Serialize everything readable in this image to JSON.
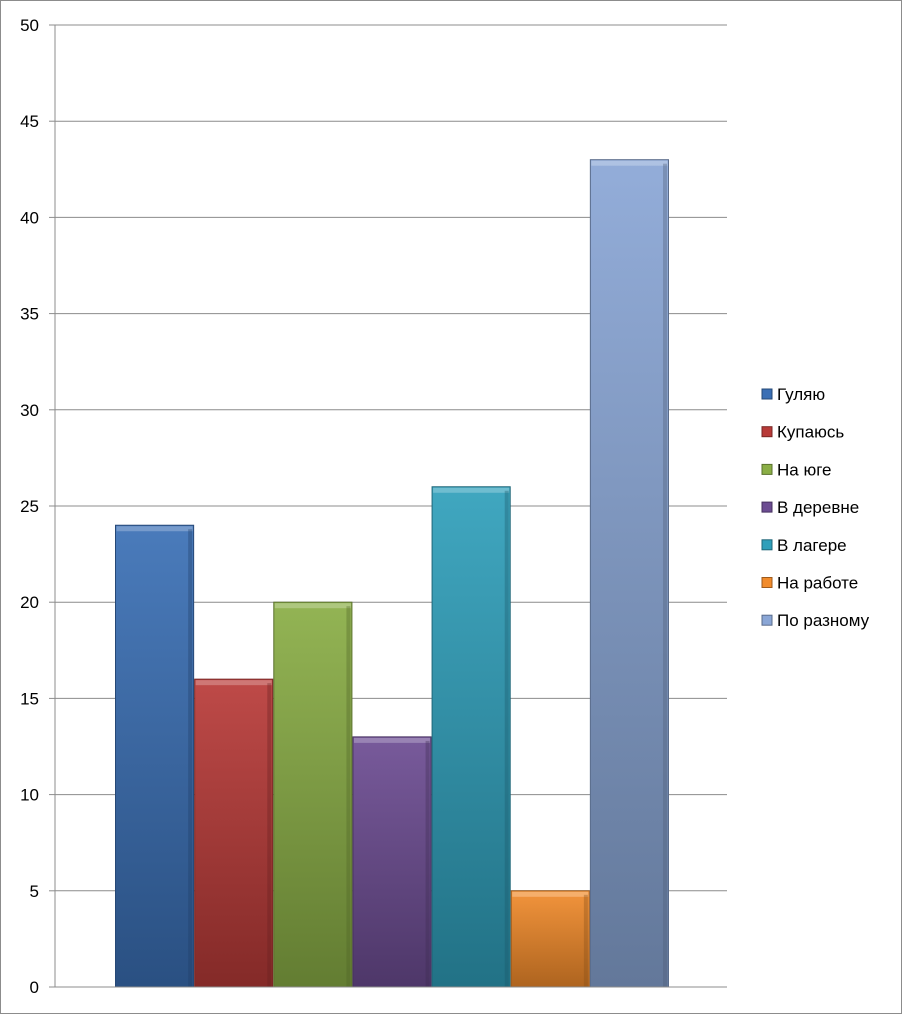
{
  "chart_data": {
    "type": "bar",
    "title": "",
    "xlabel": "",
    "ylabel": "",
    "ylim": [
      0,
      50
    ],
    "y_ticks": [
      "0",
      "5",
      "10",
      "15",
      "20",
      "25",
      "30",
      "35",
      "40",
      "45",
      "50"
    ],
    "grid": true,
    "legend_position": "right",
    "series": [
      {
        "name": "Гуляю",
        "value": 24,
        "color": "#3a6fb5"
      },
      {
        "name": "Купаюсь",
        "value": 16,
        "color": "#b83a38"
      },
      {
        "name": "На юге",
        "value": 20,
        "color": "#8aae45"
      },
      {
        "name": "В деревне",
        "value": 13,
        "color": "#6c4c92"
      },
      {
        "name": "В лагере",
        "value": 26,
        "color": "#2f9fba"
      },
      {
        "name": "На работе",
        "value": 5,
        "color": "#f18b2b"
      },
      {
        "name": "По разному",
        "value": 43,
        "color": "#8aa6d6"
      }
    ]
  }
}
